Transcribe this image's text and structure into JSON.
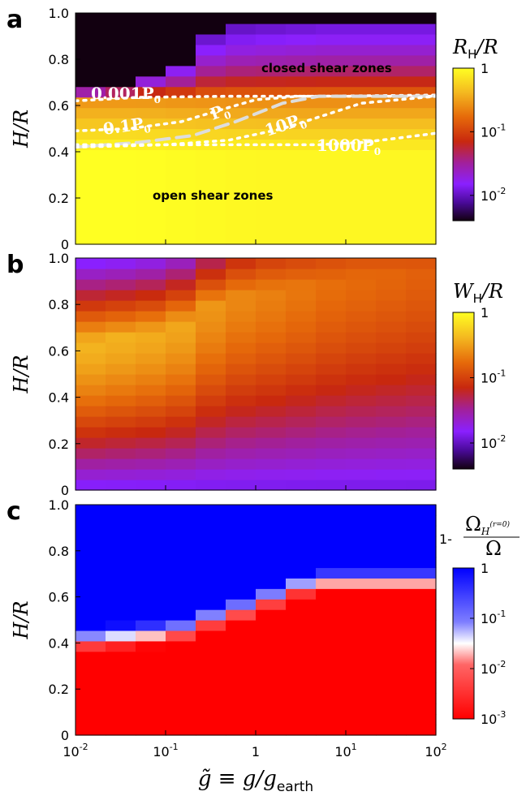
{
  "figure": {
    "xlabel": "g̃ ≡ g/g",
    "xlabel_sub": "earth",
    "x_ticks": [
      {
        "base": "10",
        "exp": "-2"
      },
      {
        "base": "10",
        "exp": "-1"
      },
      {
        "base": "1",
        "exp": ""
      },
      {
        "base": "10",
        "exp": "1"
      },
      {
        "base": "10",
        "exp": "2"
      }
    ]
  },
  "chart_data": [
    {
      "type": "heatmap",
      "panel_label": "a",
      "ylabel": "H/R",
      "xscale": "log",
      "xlim": [
        0.01,
        100
      ],
      "ylim": [
        0,
        1.0
      ],
      "y_ticks": [
        "0",
        "0.2",
        "0.4",
        "0.6",
        "0.8",
        "1.0"
      ],
      "colorbar": {
        "title": "R",
        "title_sub": "H",
        "title_tail": "/R",
        "scale": "log",
        "range": [
          0.004,
          1
        ],
        "colormap": "gnuplot-hot",
        "ticks": [
          {
            "base": "1",
            "exp": ""
          },
          {
            "base": "10",
            "exp": "-1"
          },
          {
            "base": "10",
            "exp": "-2"
          }
        ]
      },
      "annotations": [
        "closed shear zones",
        "open shear zones"
      ],
      "contours": [
        {
          "label": "0.001P",
          "label_sub": "0",
          "style": "dotted",
          "points": [
            [
              0.01,
              0.62
            ],
            [
              0.05,
              0.635
            ],
            [
              0.5,
              0.64
            ],
            [
              5,
              0.64
            ],
            [
              100,
              0.645
            ]
          ]
        },
        {
          "label": "0.1P",
          "label_sub": "0",
          "style": "dotted",
          "points": [
            [
              0.01,
              0.49
            ],
            [
              0.04,
              0.5
            ],
            [
              0.15,
              0.53
            ],
            [
              0.4,
              0.58
            ],
            [
              1,
              0.625
            ],
            [
              3,
              0.64
            ],
            [
              100,
              0.64
            ]
          ]
        },
        {
          "label": "P",
          "label_sub": "0",
          "style": "dashed",
          "points": [
            [
              0.01,
              0.42
            ],
            [
              0.05,
              0.44
            ],
            [
              0.2,
              0.47
            ],
            [
              0.6,
              0.53
            ],
            [
              2,
              0.61
            ],
            [
              5,
              0.64
            ],
            [
              100,
              0.64
            ]
          ]
        },
        {
          "label": "10P",
          "label_sub": "0",
          "style": "dotted",
          "points": [
            [
              0.01,
              0.42
            ],
            [
              0.1,
              0.43
            ],
            [
              0.5,
              0.45
            ],
            [
              2,
              0.5
            ],
            [
              5,
              0.55
            ],
            [
              15,
              0.61
            ],
            [
              100,
              0.64
            ]
          ]
        },
        {
          "label": "1000P",
          "label_sub": "0",
          "style": "dotted",
          "points": [
            [
              0.01,
              0.43
            ],
            [
              1,
              0.43
            ],
            [
              5,
              0.43
            ],
            [
              15,
              0.44
            ],
            [
              40,
              0.46
            ],
            [
              100,
              0.48
            ]
          ]
        }
      ],
      "grid": {
        "cols": 12,
        "rows": 22,
        "col_thresholds": [
          0.66,
          0.7,
          0.74,
          0.79,
          0.9,
          0.94,
          0.95,
          0.96,
          0.97,
          0.97,
          0.97,
          0.97
        ],
        "col_brightness": [
          1.0,
          1.0,
          0.99,
          0.96,
          0.94,
          0.92,
          0.91,
          0.9,
          0.9,
          0.9,
          0.9,
          0.9
        ],
        "transition_gamma": 0.55,
        "dark_value": 0.004,
        "min_value": 0.008
      }
    },
    {
      "type": "heatmap",
      "panel_label": "b",
      "ylabel": "H/R",
      "xscale": "log",
      "xlim": [
        0.01,
        100
      ],
      "ylim": [
        0,
        1.0
      ],
      "y_ticks": [
        "0",
        "0.2",
        "0.4",
        "0.6",
        "0.8",
        "1.0"
      ],
      "colorbar": {
        "title": "W",
        "title_sub": "H",
        "title_tail": "/R",
        "scale": "log",
        "range": [
          0.004,
          1
        ],
        "colormap": "gnuplot-hot",
        "ticks": [
          {
            "base": "1",
            "exp": ""
          },
          {
            "base": "10",
            "exp": "-1"
          },
          {
            "base": "10",
            "exp": "-2"
          }
        ]
      },
      "grid": {
        "cols": 12,
        "rows": 22,
        "col_peaks": [
          0.64,
          0.66,
          0.68,
          0.72,
          0.8,
          0.84,
          0.86,
          0.88,
          0.9,
          0.92,
          0.93,
          0.94
        ],
        "col_peak_values": [
          0.4,
          0.38,
          0.36,
          0.34,
          0.28,
          0.24,
          0.22,
          0.2,
          0.18,
          0.17,
          0.16,
          0.15
        ],
        "top_values": [
          0.012,
          0.013,
          0.015,
          0.02,
          0.04,
          0.07,
          0.09,
          0.1,
          0.11,
          0.12,
          0.12,
          0.12
        ],
        "bottom_value": 0.012,
        "width_sigma": 0.3
      }
    },
    {
      "type": "heatmap",
      "panel_label": "c",
      "ylabel": "H/R",
      "xscale": "log",
      "xlim": [
        0.01,
        100
      ],
      "ylim": [
        0,
        1.0
      ],
      "y_ticks": [
        "0",
        "0.2",
        "0.4",
        "0.6",
        "0.8",
        "1.0"
      ],
      "colorbar": {
        "title_prefix": "1-",
        "title_num": "Ω",
        "title_num_sub": "H",
        "title_num_sup": "(r=0)",
        "title_den": "Ω",
        "scale": "log",
        "range": [
          0.001,
          1
        ],
        "colormap": "red-white-blue",
        "ticks": [
          {
            "base": "1",
            "exp": ""
          },
          {
            "base": "10",
            "exp": "-1"
          },
          {
            "base": "10",
            "exp": "-2"
          },
          {
            "base": "10",
            "exp": "-3"
          }
        ]
      },
      "grid": {
        "cols": 12,
        "rows": 22,
        "col_white": [
          0.4,
          0.41,
          0.42,
          0.44,
          0.49,
          0.53,
          0.58,
          0.63,
          0.65,
          0.65,
          0.65,
          0.65
        ],
        "decades_per_unit": 28,
        "min_value": 0.001,
        "max_value": 1.0
      }
    }
  ]
}
